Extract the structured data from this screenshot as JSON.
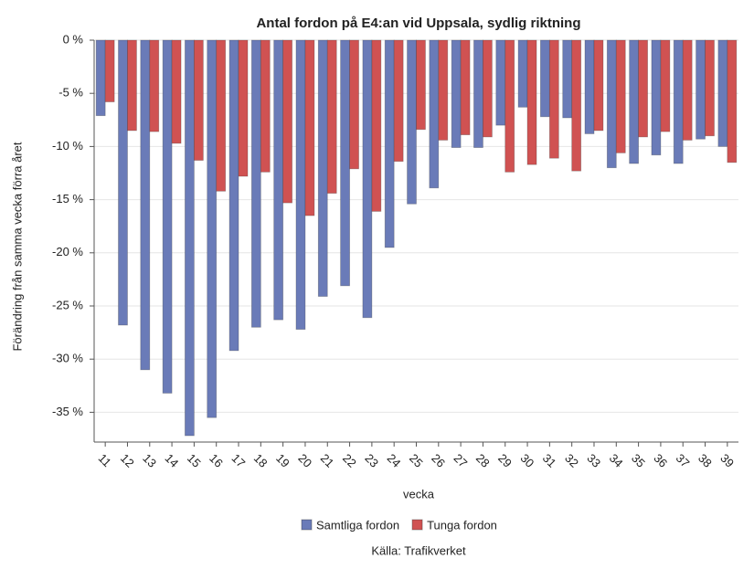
{
  "chart_data": {
    "type": "bar",
    "title": "Antal fordon på E4:an vid Uppsala, sydlig riktning",
    "x_label": "vecka",
    "y_label": "Förändring från samma vecka förra året",
    "source": "Källa: Trafikverket",
    "categories": [
      "11",
      "12",
      "13",
      "14",
      "15",
      "16",
      "17",
      "18",
      "19",
      "20",
      "21",
      "22",
      "23",
      "24",
      "25",
      "26",
      "27",
      "28",
      "29",
      "30",
      "31",
      "32",
      "33",
      "34",
      "35",
      "36",
      "37",
      "38",
      "39"
    ],
    "series": [
      {
        "name": "Samtliga fordon",
        "color": "#6a7bb8",
        "values": [
          -7.1,
          -26.8,
          -31.0,
          -33.2,
          -37.2,
          -35.5,
          -29.2,
          -27.0,
          -26.3,
          -27.2,
          -24.1,
          -23.1,
          -26.1,
          -19.5,
          -15.4,
          -13.9,
          -10.1,
          -10.1,
          -8.0,
          -6.3,
          -7.2,
          -7.3,
          -8.8,
          -12.0,
          -11.6,
          -10.8,
          -11.6,
          -9.3,
          -10.0
        ]
      },
      {
        "name": "Tunga fordon",
        "color": "#d05252",
        "values": [
          -5.8,
          -8.5,
          -8.6,
          -9.7,
          -11.3,
          -14.2,
          -12.8,
          -12.4,
          -15.3,
          -16.5,
          -14.4,
          -12.1,
          -16.1,
          -11.4,
          -8.4,
          -9.4,
          -8.9,
          -9.1,
          -12.4,
          -11.7,
          -11.1,
          -12.3,
          -8.5,
          -10.6,
          -9.1,
          -8.6,
          -9.4,
          -9.0,
          -11.5
        ]
      }
    ],
    "ylim": [
      -37.8,
      0
    ],
    "yticks": [
      {
        "value": 0,
        "label": "0 %"
      },
      {
        "value": -5,
        "label": "-5 %"
      },
      {
        "value": -10,
        "label": "-10 %"
      },
      {
        "value": -15,
        "label": "-15 %"
      },
      {
        "value": -20,
        "label": "-20 %"
      },
      {
        "value": -25,
        "label": "-25 %"
      },
      {
        "value": -30,
        "label": "-30 %"
      },
      {
        "value": -35,
        "label": "-35 %"
      }
    ],
    "grid": true,
    "legend": "bottom"
  }
}
